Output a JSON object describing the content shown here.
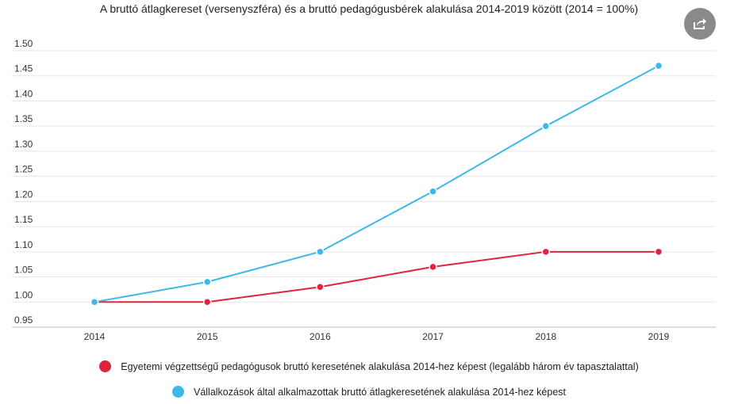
{
  "chart_data": {
    "type": "line",
    "title": "A bruttó átlagkereset (versenyszféra) és a bruttó pedagógusbérek alakulása 2014-2019 között (2014 = 100%)",
    "xlabel": "",
    "ylabel": "",
    "categories": [
      "2014",
      "2015",
      "2016",
      "2017",
      "2018",
      "2019"
    ],
    "ylim": [
      0.95,
      1.5
    ],
    "yticks": [
      "1.50",
      "1.45",
      "1.40",
      "1.35",
      "1.30",
      "1.25",
      "1.20",
      "1.15",
      "1.10",
      "1.05",
      "1.00",
      "0.95"
    ],
    "grid": true,
    "legend_position": "bottom",
    "series": [
      {
        "name": "Egyetemi végzettségű pedagógusok bruttó keresetének alakulása 2014-hez képest (legalább három év tapasztalattal)",
        "color": "#e0243f",
        "values": [
          1.0,
          1.0,
          1.03,
          1.07,
          1.1,
          1.1
        ]
      },
      {
        "name": "Vállalkozások által alkalmazottak bruttó átlagkeresetének alakulása 2014-hez képest",
        "color": "#3db8e8",
        "values": [
          1.0,
          1.04,
          1.1,
          1.22,
          1.35,
          1.47
        ]
      }
    ]
  },
  "toolbar": {
    "share_icon": "share-icon"
  }
}
